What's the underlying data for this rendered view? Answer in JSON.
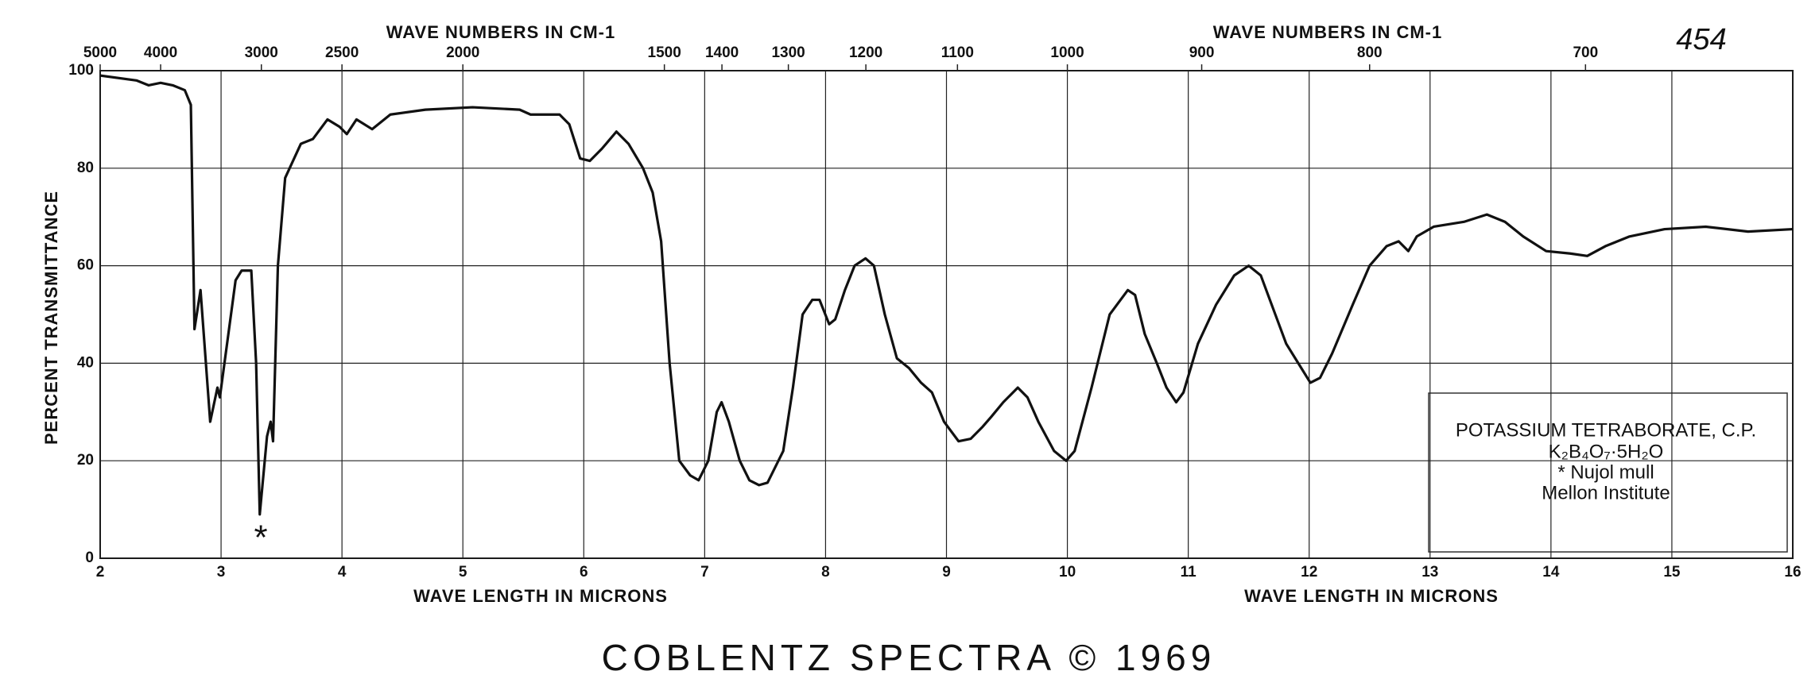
{
  "chart_data": {
    "type": "line",
    "x_label": "WAVE LENGTH IN MICRONS",
    "x2_label": "WAVE NUMBERS IN CM-1",
    "y_label": "PERCENT TRANSMITTANCE",
    "xlim": [
      2,
      16
    ],
    "xticks": [
      2,
      3,
      4,
      5,
      6,
      7,
      8,
      9,
      10,
      11,
      12,
      13,
      14,
      15,
      16
    ],
    "x2ticks": [
      5000,
      4000,
      3000,
      2500,
      2000,
      1500,
      1400,
      1300,
      1200,
      1100,
      1000,
      900,
      800,
      700
    ],
    "ylim": [
      0,
      100
    ],
    "yticks": [
      0,
      20,
      40,
      60,
      80,
      100
    ],
    "grid": true,
    "color": "#111111",
    "x": [
      2.0,
      2.3,
      2.4,
      2.5,
      2.6,
      2.7,
      2.75,
      2.78,
      2.83,
      2.91,
      2.97,
      2.99,
      3.12,
      3.17,
      3.25,
      3.29,
      3.32,
      3.38,
      3.41,
      3.43,
      3.47,
      3.53,
      3.66,
      3.76,
      3.88,
      3.98,
      4.04,
      4.12,
      4.25,
      4.4,
      4.69,
      5.08,
      5.47,
      5.56,
      5.8,
      5.88,
      5.97,
      6.05,
      6.15,
      6.27,
      6.37,
      6.49,
      6.57,
      6.64,
      6.71,
      6.79,
      6.88,
      6.95,
      7.03,
      7.1,
      7.14,
      7.2,
      7.29,
      7.37,
      7.45,
      7.52,
      7.59,
      7.65,
      7.73,
      7.81,
      7.89,
      7.95,
      8.03,
      8.08,
      8.16,
      8.24,
      8.33,
      8.4,
      8.49,
      8.59,
      8.69,
      8.79,
      8.88,
      8.98,
      9.1,
      9.2,
      9.3,
      9.37,
      9.47,
      9.59,
      9.67,
      9.76,
      9.89,
      9.99,
      10.06,
      10.2,
      10.35,
      10.5,
      10.56,
      10.64,
      10.74,
      10.82,
      10.9,
      10.96,
      11.08,
      11.23,
      11.38,
      11.5,
      11.6,
      11.72,
      11.81,
      11.91,
      12.01,
      12.09,
      12.19,
      12.36,
      12.5,
      12.64,
      12.74,
      12.82,
      12.89,
      13.03,
      13.28,
      13.47,
      13.62,
      13.77,
      13.96,
      14.16,
      14.3,
      14.45,
      14.65,
      14.94,
      15.28,
      15.63,
      16.0
    ],
    "values": [
      99,
      98,
      97,
      97.5,
      97,
      96,
      93,
      47,
      55,
      28,
      35,
      33,
      57,
      59,
      59,
      40,
      9,
      25,
      28,
      24,
      60,
      78,
      85,
      86,
      90,
      88.5,
      87,
      90,
      88,
      91,
      92,
      92.5,
      92,
      91,
      91,
      89,
      82,
      81.5,
      84,
      87.5,
      85,
      80,
      75,
      65,
      40,
      20,
      17,
      16,
      20,
      30,
      32,
      28,
      20,
      16,
      15,
      15.5,
      19,
      22,
      35,
      50,
      53,
      53,
      48,
      49,
      55,
      60,
      61.5,
      60,
      50,
      41,
      39,
      36,
      34,
      28,
      24,
      24.5,
      27,
      29,
      32,
      35,
      33,
      28,
      22,
      20,
      22,
      35,
      50,
      55,
      54,
      46,
      40,
      35,
      32,
      34,
      44,
      52,
      58,
      60,
      58,
      50,
      44,
      40,
      36,
      37,
      42,
      52,
      60,
      64,
      65,
      63,
      66,
      68,
      69,
      70.5,
      69,
      66,
      63,
      62.5,
      62,
      64,
      66,
      67.5,
      68,
      67,
      67.5
    ],
    "annotations": {
      "sample_number": "454",
      "marker": "*"
    },
    "legend_box": [
      "POTASSIUM TETRABORATE, C.P.",
      "K₂B₄O₇·5H₂O",
      "* Nujol mull",
      "Mellon Institute"
    ],
    "footer": "COBLENTZ SPECTRA © 1969"
  }
}
